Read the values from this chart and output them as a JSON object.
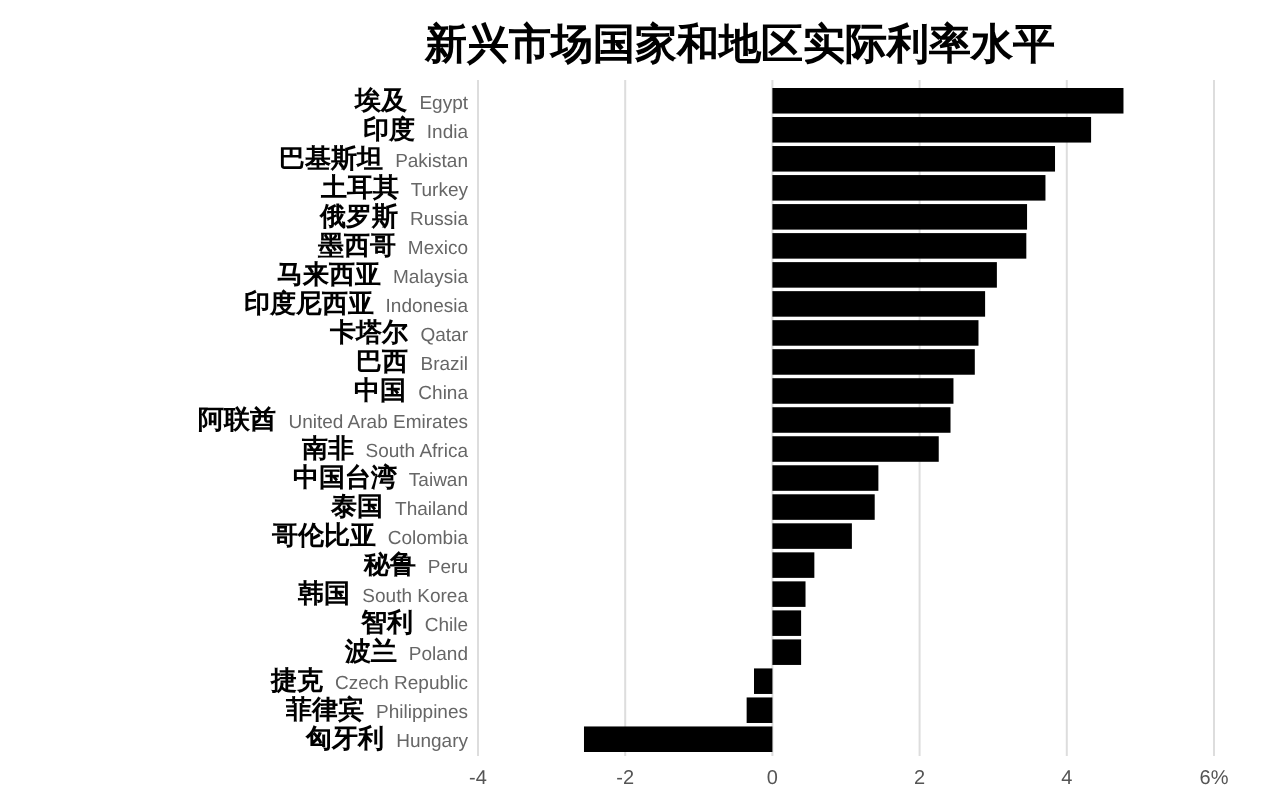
{
  "chart_data": {
    "type": "bar",
    "orientation": "horizontal",
    "title": "新兴市场国家和地区实际利率水平",
    "categories": [
      "埃及 Egypt",
      "印度 India",
      "巴基斯坦 Pakistan",
      "土耳其 Turkey",
      "俄罗斯 Russia",
      "墨西哥 Mexico",
      "马来西亚 Malaysia",
      "印度尼西亚 Indonesia",
      "卡塔尔 Qatar",
      "巴西 Brazil",
      "中国 China",
      "阿联酋 United Arab Emirates",
      "南非 South Africa",
      "中国台湾 Taiwan",
      "泰国 Thailand",
      "哥伦比亚 Colombia",
      "秘鲁 Peru",
      "韩国 South Korea",
      "智利 Chile",
      "波兰 Poland",
      "捷克 Czech Republic",
      "菲律宾 Philippines",
      "匈牙利 Hungary"
    ],
    "values": [
      4.77,
      4.33,
      3.84,
      3.71,
      3.46,
      3.45,
      3.05,
      2.89,
      2.8,
      2.75,
      2.46,
      2.42,
      2.26,
      1.44,
      1.39,
      1.08,
      0.57,
      0.45,
      0.39,
      0.39,
      -0.25,
      -0.35,
      -2.56
    ],
    "color": "#000000",
    "xlim": [
      -4,
      6
    ],
    "xticks": [
      -4,
      -2,
      0,
      2,
      4,
      {
        "value": 6,
        "label": "6%"
      }
    ],
    "grid": "x"
  }
}
